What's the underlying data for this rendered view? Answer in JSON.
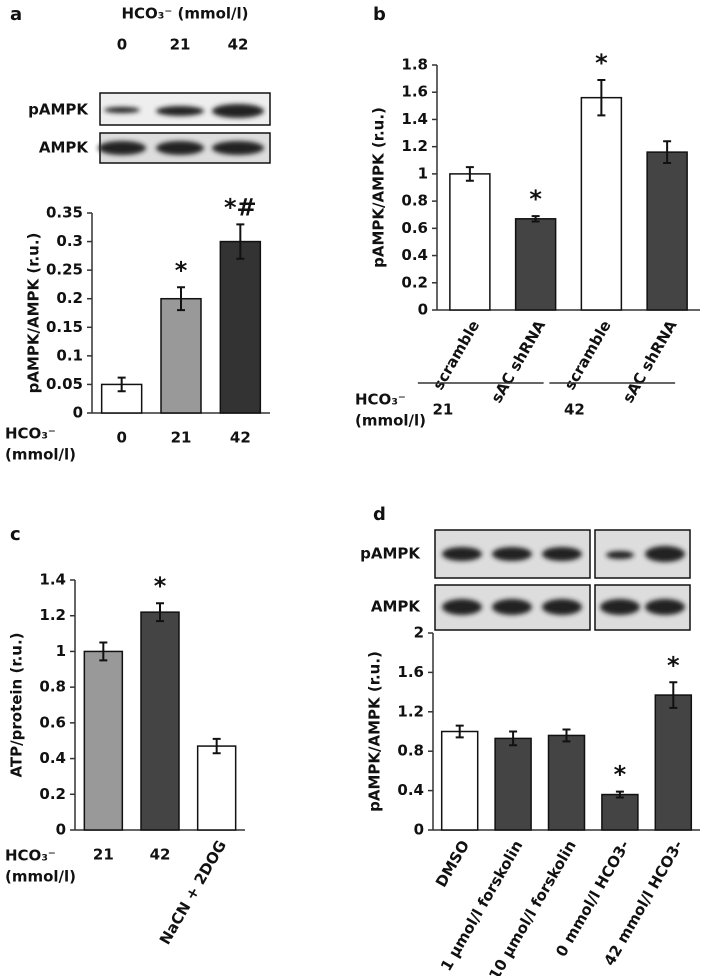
{
  "chart_data": [
    {
      "type": "bar",
      "panel_label": "a",
      "blot": {
        "header": "HCO₃⁻ (mmol/l)",
        "lanes": [
          "0",
          "21",
          "42"
        ],
        "rows": [
          "pAMPK",
          "AMPK"
        ]
      },
      "y_label": "pAMPK/AMPK (r.u.)",
      "x_group_label": [
        "HCO₃⁻",
        "(mmol/l)"
      ],
      "categories": [
        "0",
        "21",
        "42"
      ],
      "values": [
        0.05,
        0.2,
        0.3
      ],
      "errors": [
        0.012,
        0.02,
        0.03
      ],
      "colors": [
        "#ffffff",
        "#999999",
        "#333333"
      ],
      "annotations": [
        null,
        "*",
        "*#"
      ],
      "ylim": [
        0,
        0.35
      ],
      "yticks": [
        0,
        0.05,
        0.1,
        0.15,
        0.2,
        0.25,
        0.3,
        0.35
      ]
    },
    {
      "type": "bar",
      "panel_label": "b",
      "y_label": "pAMPK/AMPK (r.u.)",
      "x_group_label": [
        "HCO₃⁻",
        "(mmol/l)"
      ],
      "groups": [
        "21",
        "42"
      ],
      "categories": [
        "scramble",
        "sAC shRNA",
        "scramble",
        "sAC shRNA"
      ],
      "values": [
        1.0,
        0.67,
        1.56,
        1.16
      ],
      "errors": [
        0.05,
        0.02,
        0.13,
        0.08
      ],
      "colors": [
        "#ffffff",
        "#444444",
        "#ffffff",
        "#444444"
      ],
      "annotations": [
        null,
        "*",
        "*",
        null
      ],
      "ylim": [
        0,
        1.8
      ],
      "yticks": [
        0,
        0.2,
        0.4,
        0.6,
        0.8,
        1,
        1.2,
        1.4,
        1.6,
        1.8
      ]
    },
    {
      "type": "bar",
      "panel_label": "c",
      "y_label": "ATP/protein (r.u.)",
      "x_group_label": [
        "HCO₃⁻",
        "(mmol/l)"
      ],
      "categories": [
        "21",
        "42",
        "NaCN + 2DOG"
      ],
      "values": [
        1.0,
        1.22,
        0.47
      ],
      "errors": [
        0.05,
        0.05,
        0.04
      ],
      "colors": [
        "#999999",
        "#444444",
        "#ffffff"
      ],
      "annotations": [
        null,
        "*",
        null
      ],
      "ylim": [
        0,
        1.4
      ],
      "yticks": [
        0,
        0.2,
        0.4,
        0.6,
        0.8,
        1,
        1.2,
        1.4
      ]
    },
    {
      "type": "bar",
      "panel_label": "d",
      "blot": {
        "rows": [
          "pAMPK",
          "AMPK"
        ]
      },
      "y_label": "pAMPK/AMPK (r.u.)",
      "categories": [
        "DMSO",
        "1 μmol/l forskolin",
        "10 μmol/l forskolin",
        "0 mmol/l HCO3-",
        "42 mmol/l HCO3-"
      ],
      "values": [
        1.0,
        0.93,
        0.96,
        0.36,
        1.37
      ],
      "errors": [
        0.06,
        0.07,
        0.06,
        0.03,
        0.13
      ],
      "colors": [
        "#ffffff",
        "#444444",
        "#444444",
        "#444444",
        "#444444"
      ],
      "annotations": [
        null,
        null,
        null,
        "*",
        "*"
      ],
      "ylim": [
        0,
        2
      ],
      "yticks": [
        0,
        0.4,
        0.8,
        1.2,
        1.6,
        2
      ]
    }
  ]
}
